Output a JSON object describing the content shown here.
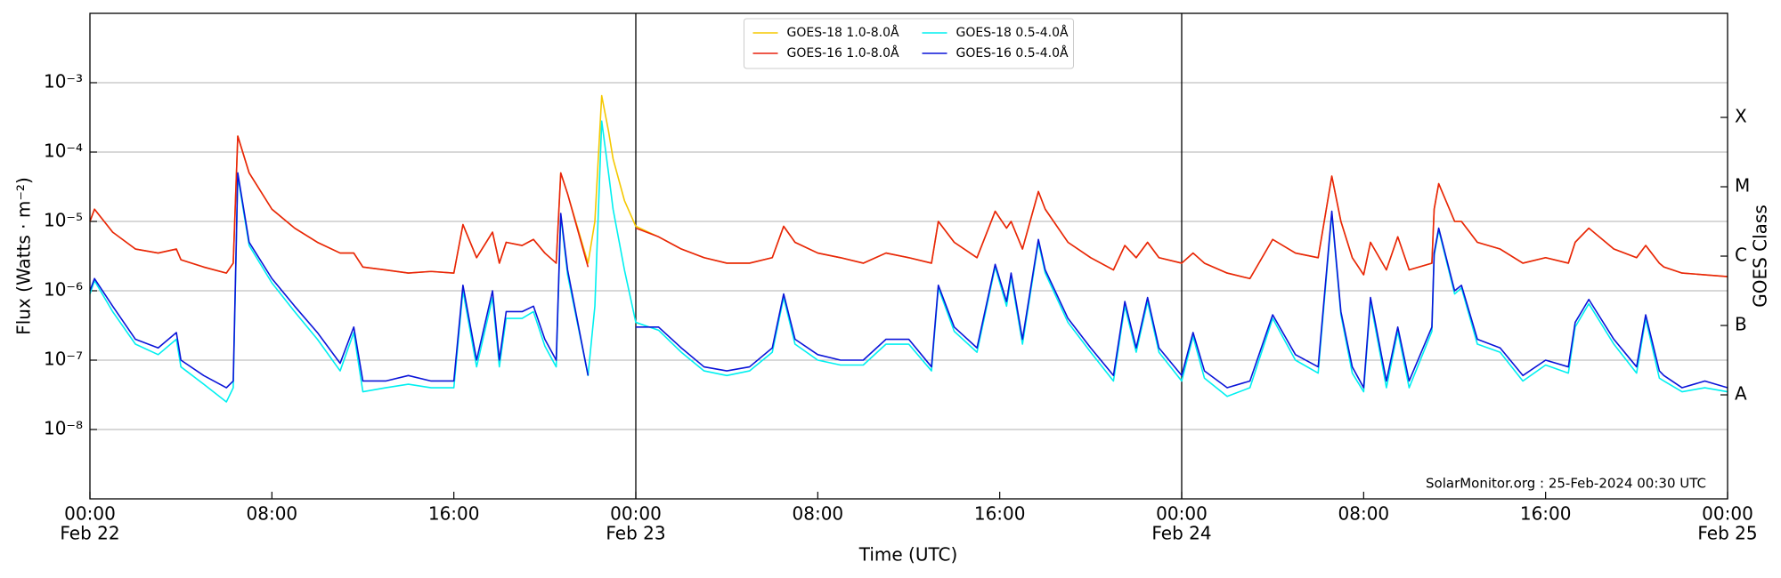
{
  "chart_data": {
    "type": "line",
    "ylabel": "Flux (Watts · m⁻²)",
    "xlabel": "Time (UTC)",
    "y2label": "GOES Class",
    "annotation": "SolarMonitor.org : 25-Feb-2024 00:30 UTC",
    "ylog": true,
    "grid": true,
    "legend": "upper center",
    "ylim": [
      1e-09,
      0.01
    ],
    "yticks": [
      {
        "value": 1e-08,
        "label": "10⁻⁸"
      },
      {
        "value": 1e-07,
        "label": "10⁻⁷"
      },
      {
        "value": 1e-06,
        "label": "10⁻⁶"
      },
      {
        "value": 1e-05,
        "label": "10⁻⁵"
      },
      {
        "value": 0.0001,
        "label": "10⁻⁴"
      },
      {
        "value": 0.001,
        "label": "10⁻³"
      }
    ],
    "y2lim": [
      1e-09,
      0.01
    ],
    "y2ticks": [
      {
        "value": 3.16e-08,
        "label": "A"
      },
      {
        "value": 3.16e-07,
        "label": "B"
      },
      {
        "value": 3.16e-06,
        "label": "C"
      },
      {
        "value": 3.16e-05,
        "label": "M"
      },
      {
        "value": 0.000316,
        "label": "X"
      }
    ],
    "xlim": [
      0,
      72
    ],
    "xticks": [
      {
        "value": 0,
        "label": "00:00"
      },
      {
        "value": 8,
        "label": "08:00"
      },
      {
        "value": 16,
        "label": "16:00"
      },
      {
        "value": 24,
        "label": "00:00"
      },
      {
        "value": 32,
        "label": "08:00"
      },
      {
        "value": 40,
        "label": "16:00"
      },
      {
        "value": 48,
        "label": "00:00"
      },
      {
        "value": 56,
        "label": "08:00"
      },
      {
        "value": 64,
        "label": "16:00"
      },
      {
        "value": 72,
        "label": "00:00"
      }
    ],
    "x_date_ticks": [
      {
        "value": 0,
        "label": "Feb 22"
      },
      {
        "value": 24,
        "label": "Feb 23"
      },
      {
        "value": 48,
        "label": "Feb 24"
      },
      {
        "value": 72,
        "label": "Feb 25"
      }
    ],
    "x": [
      0,
      0.2,
      1,
      2,
      3,
      3.8,
      4,
      5,
      6,
      6.3,
      6.5,
      7,
      8,
      9,
      10,
      11,
      11.6,
      12,
      13,
      14,
      15,
      16,
      16.4,
      17,
      17.7,
      18,
      18.3,
      19,
      19.5,
      20,
      20.5,
      20.7,
      21,
      21.9,
      22.2,
      22.5,
      22.8,
      23,
      23.5,
      24,
      25,
      26,
      27,
      28,
      29,
      30,
      30.5,
      31,
      32,
      33,
      34,
      35,
      36,
      37,
      37.3,
      38,
      39,
      39.8,
      40.3,
      40.5,
      41,
      41.7,
      42,
      43,
      44,
      45,
      45.5,
      46,
      46.5,
      47,
      48,
      48.5,
      49,
      50,
      51,
      52,
      53,
      54,
      54.6,
      55,
      55.5,
      56,
      56.3,
      57,
      57.5,
      58,
      59,
      59.1,
      59.3,
      60,
      60.3,
      61,
      62,
      63,
      64,
      65,
      65.3,
      65.9,
      67,
      68,
      68.4,
      69,
      69.2,
      70,
      71,
      72
    ],
    "series": [
      {
        "name": "GOES-18 1.0-8.0Å",
        "color": "#f5c800",
        "values": [
          1e-05,
          1.5e-05,
          7e-06,
          4e-06,
          3.5e-06,
          4e-06,
          2.8e-06,
          2.2e-06,
          1.8e-06,
          2.5e-06,
          0.00017,
          5e-05,
          1.5e-05,
          8e-06,
          5e-06,
          3.5e-06,
          3.5e-06,
          2.2e-06,
          2e-06,
          1.8e-06,
          1.9e-06,
          1.8e-06,
          9e-06,
          3e-06,
          7e-06,
          2.5e-06,
          5e-06,
          4.5e-06,
          5.5e-06,
          3.5e-06,
          2.5e-06,
          5e-05,
          2.5e-05,
          2.5e-06,
          1e-05,
          0.00065,
          0.0002,
          8e-05,
          2e-05,
          8.5e-06,
          6e-06,
          4e-06,
          3e-06,
          2.5e-06,
          2.5e-06,
          3e-06,
          8.5e-06,
          5e-06,
          3.5e-06,
          3e-06,
          2.5e-06,
          3.5e-06,
          3e-06,
          2.5e-06,
          1e-05,
          5e-06,
          3e-06,
          1.4e-05,
          8e-06,
          1e-05,
          4e-06,
          2.7e-05,
          1.5e-05,
          5e-06,
          3e-06,
          2e-06,
          4.5e-06,
          3e-06,
          5e-06,
          3e-06,
          2.5e-06,
          3.5e-06,
          2.5e-06,
          1.8e-06,
          1.5e-06,
          5.5e-06,
          3.5e-06,
          3e-06,
          4.5e-05,
          1e-05,
          3e-06,
          1.7e-06,
          5e-06,
          2e-06,
          6e-06,
          2e-06,
          2.5e-06,
          1.5e-05,
          3.5e-05,
          1e-05,
          1e-05,
          5e-06,
          4e-06,
          2.5e-06,
          3e-06,
          2.5e-06,
          5e-06,
          8e-06,
          4e-06,
          3e-06,
          4.5e-06,
          2.5e-06,
          2.2e-06,
          1.8e-06,
          1.7e-06,
          1.6e-06
        ]
      },
      {
        "name": "GOES-16 1.0-8.0Å",
        "color": "#e8210e",
        "values": [
          1e-05,
          1.5e-05,
          7e-06,
          4e-06,
          3.5e-06,
          4e-06,
          2.8e-06,
          2.2e-06,
          1.8e-06,
          2.5e-06,
          0.00017,
          5e-05,
          1.5e-05,
          8e-06,
          5e-06,
          3.5e-06,
          3.5e-06,
          2.2e-06,
          2e-06,
          1.8e-06,
          1.9e-06,
          1.8e-06,
          9e-06,
          3e-06,
          7e-06,
          2.5e-06,
          5e-06,
          4.5e-06,
          5.5e-06,
          3.5e-06,
          2.5e-06,
          5e-05,
          2.5e-05,
          2.2e-06,
          null,
          null,
          null,
          null,
          null,
          8e-06,
          6e-06,
          4e-06,
          3e-06,
          2.5e-06,
          2.5e-06,
          3e-06,
          8.5e-06,
          5e-06,
          3.5e-06,
          3e-06,
          2.5e-06,
          3.5e-06,
          3e-06,
          2.5e-06,
          1e-05,
          5e-06,
          3e-06,
          1.4e-05,
          8e-06,
          1e-05,
          4e-06,
          2.7e-05,
          1.5e-05,
          5e-06,
          3e-06,
          2e-06,
          4.5e-06,
          3e-06,
          5e-06,
          3e-06,
          2.5e-06,
          3.5e-06,
          2.5e-06,
          1.8e-06,
          1.5e-06,
          5.5e-06,
          3.5e-06,
          3e-06,
          4.5e-05,
          1e-05,
          3e-06,
          1.7e-06,
          5e-06,
          2e-06,
          6e-06,
          2e-06,
          2.5e-06,
          1.5e-05,
          3.5e-05,
          1e-05,
          1e-05,
          5e-06,
          4e-06,
          2.5e-06,
          3e-06,
          2.5e-06,
          5e-06,
          8e-06,
          4e-06,
          3e-06,
          4.5e-06,
          2.5e-06,
          2.2e-06,
          1.8e-06,
          1.7e-06,
          1.6e-06
        ]
      },
      {
        "name": "GOES-18 0.5-4.0Å",
        "color": "#00f0f0",
        "values": [
          9e-07,
          1.4e-06,
          5e-07,
          1.7e-07,
          1.2e-07,
          2e-07,
          8e-08,
          4.5e-08,
          2.5e-08,
          4e-08,
          4.5e-05,
          4.5e-06,
          1.3e-06,
          5e-07,
          2e-07,
          7e-08,
          2.5e-07,
          3.5e-08,
          4e-08,
          4.5e-08,
          4e-08,
          4e-08,
          1e-06,
          8e-08,
          8e-07,
          8e-08,
          4e-07,
          4e-07,
          5e-07,
          1.6e-07,
          8e-08,
          1.2e-05,
          1.7e-06,
          6e-08,
          6e-07,
          0.00028,
          5e-05,
          1.5e-05,
          2e-06,
          3.5e-07,
          2.7e-07,
          1.3e-07,
          7e-08,
          6e-08,
          7e-08,
          1.3e-07,
          8e-07,
          1.7e-07,
          1e-07,
          8.5e-08,
          8.5e-08,
          1.7e-07,
          1.7e-07,
          7e-08,
          1.1e-06,
          2.6e-07,
          1.3e-07,
          2.2e-06,
          6e-07,
          1.6e-06,
          1.7e-07,
          5e-06,
          1.8e-06,
          3.5e-07,
          1.3e-07,
          5e-08,
          6e-07,
          1.3e-07,
          7e-07,
          1.3e-07,
          5e-08,
          2.2e-07,
          5.5e-08,
          3e-08,
          4e-08,
          4e-07,
          1e-07,
          6.5e-08,
          1.3e-05,
          4.5e-07,
          6.5e-08,
          3.5e-08,
          7e-07,
          4e-08,
          2.6e-07,
          4e-08,
          2.6e-07,
          3.2e-06,
          7.5e-06,
          9e-07,
          1.1e-06,
          1.7e-07,
          1.3e-07,
          5e-08,
          8.5e-08,
          6.5e-08,
          3e-07,
          6.5e-07,
          1.7e-07,
          6.5e-08,
          4e-07,
          5.5e-08,
          5e-08,
          3.5e-08,
          4e-08,
          3.5e-08
        ]
      },
      {
        "name": "GOES-16 0.5-4.0Å",
        "color": "#0a14d8",
        "values": [
          1e-06,
          1.5e-06,
          6e-07,
          2e-07,
          1.5e-07,
          2.5e-07,
          1e-07,
          6e-08,
          4e-08,
          5e-08,
          5e-05,
          5e-06,
          1.5e-06,
          6e-07,
          2.5e-07,
          9e-08,
          3e-07,
          5e-08,
          5e-08,
          6e-08,
          5e-08,
          5e-08,
          1.2e-06,
          1e-07,
          1e-06,
          1e-07,
          5e-07,
          5e-07,
          6e-07,
          2e-07,
          1e-07,
          1.3e-05,
          2e-06,
          6e-08,
          null,
          null,
          null,
          null,
          null,
          3e-07,
          3e-07,
          1.5e-07,
          8e-08,
          7e-08,
          8e-08,
          1.5e-07,
          9e-07,
          2e-07,
          1.2e-07,
          1e-07,
          1e-07,
          2e-07,
          2e-07,
          8e-08,
          1.2e-06,
          3e-07,
          1.5e-07,
          2.4e-06,
          7e-07,
          1.8e-06,
          2e-07,
          5.5e-06,
          2e-06,
          4e-07,
          1.5e-07,
          6e-08,
          7e-07,
          1.5e-07,
          8e-07,
          1.5e-07,
          6e-08,
          2.5e-07,
          7e-08,
          4e-08,
          5e-08,
          4.5e-07,
          1.2e-07,
          8e-08,
          1.4e-05,
          5e-07,
          8e-08,
          4e-08,
          8e-07,
          5e-08,
          3e-07,
          5e-08,
          3e-07,
          3.5e-06,
          8e-06,
          1e-06,
          1.2e-06,
          2e-07,
          1.5e-07,
          6e-08,
          1e-07,
          8e-08,
          3.5e-07,
          7.5e-07,
          2e-07,
          8e-08,
          4.5e-07,
          7e-08,
          6e-08,
          4e-08,
          5e-08,
          4e-08
        ]
      }
    ]
  }
}
